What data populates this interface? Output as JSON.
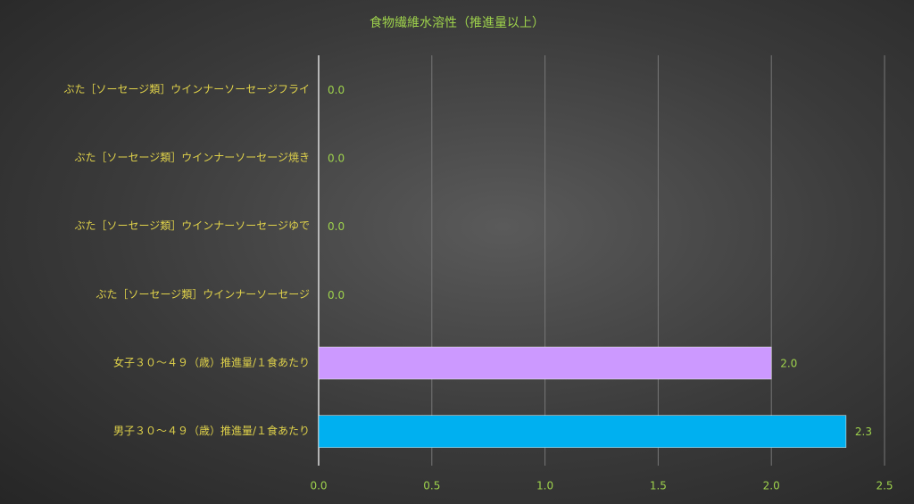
{
  "chart_data": {
    "type": "hbar",
    "title": "食物繊維水溶性（推進量以上）",
    "categories": [
      "ぶた［ソーセージ類］ウインナーソーセージフライ",
      "ぶた［ソーセージ類］ウインナーソーセージ焼き",
      "ぶた［ソーセージ類］ウインナーソーセージゆで",
      "ぶた［ソーセージ類］ウインナーソーセージ",
      "女子３０～４９（歳）推進量/１食あたり",
      "男子３０～４９（歳）推進量/１食あたり"
    ],
    "values": [
      0,
      0,
      0,
      0,
      2.0,
      2.33
    ],
    "value_labels": [
      "0.0",
      "0.0",
      "0.0",
      "0.0",
      "2.0",
      "2.3"
    ],
    "colors": [
      "#8fbbe8",
      "#8fbbe8",
      "#8fbbe8",
      "#8fbbe8",
      "#cc99ff",
      "#00b0f0"
    ],
    "xlim": [
      0,
      2.5
    ],
    "xticks": [
      {
        "value": 0,
        "label": "0.0"
      },
      {
        "value": 0.5,
        "label": "0.5"
      },
      {
        "value": 1,
        "label": "1.0"
      },
      {
        "value": 1.5,
        "label": "1.5"
      },
      {
        "value": 2,
        "label": "2.0"
      },
      {
        "value": 2.5,
        "label": "2.5"
      }
    ],
    "grid": true
  }
}
